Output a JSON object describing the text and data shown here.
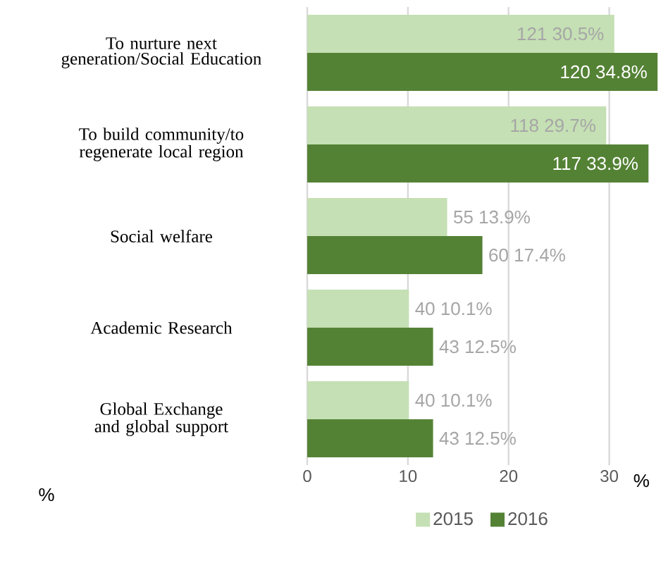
{
  "chart_data": {
    "type": "bar",
    "orientation": "horizontal",
    "categories": [
      "To nurture next generation/Social Education",
      "To build community/to regenerate local region",
      "Social welfare",
      "Academic Research",
      "Global Exchange and global support"
    ],
    "series": [
      {
        "name": "2015",
        "color": "#c5e0b4",
        "values": [
          30.5,
          29.7,
          13.9,
          10.1,
          10.1
        ],
        "value_labels": [
          "121  30.5%",
          "118  29.7%",
          "55  13.9%",
          "40  10.1%",
          "40  10.1%"
        ]
      },
      {
        "name": "2016",
        "color": "#548235",
        "values": [
          34.8,
          33.9,
          17.4,
          12.5,
          12.5
        ],
        "value_labels": [
          "120  34.8%",
          "117  33.9%",
          "60  17.4%",
          "43  12.5%",
          "43  12.5%"
        ]
      }
    ],
    "xlim": [
      0,
      35
    ],
    "xticks": [
      0,
      10,
      20,
      30
    ],
    "xlabel": "%",
    "annotations": [
      "%"
    ],
    "grid": "x",
    "legend": "bottom"
  }
}
